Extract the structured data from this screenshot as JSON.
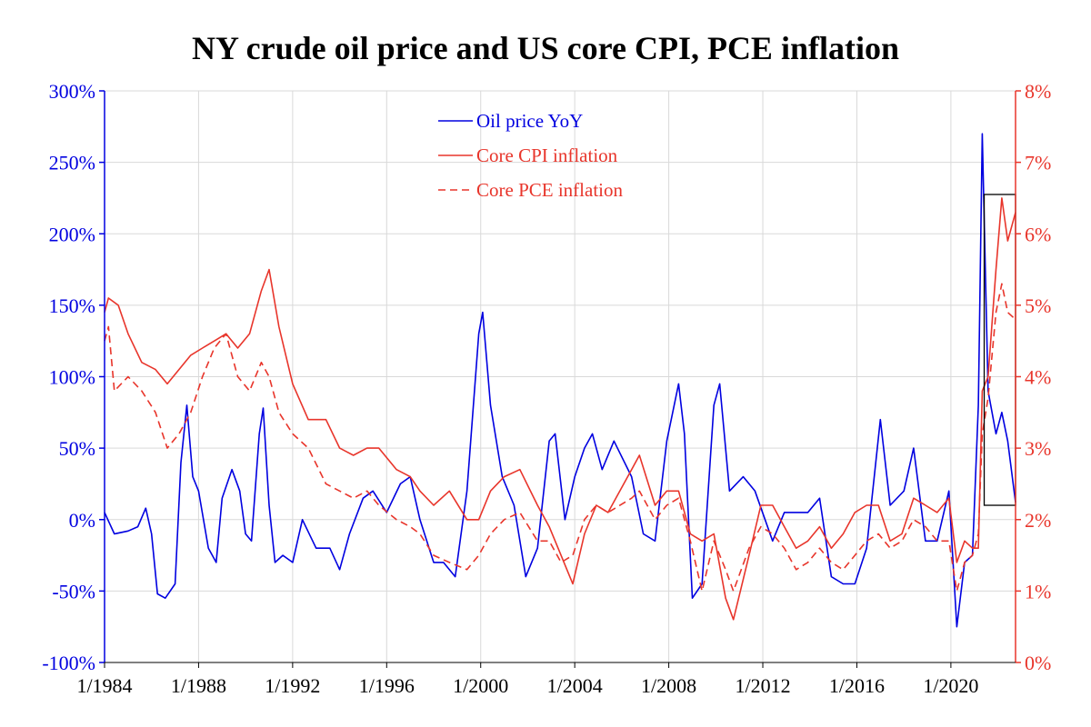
{
  "chart_data": {
    "type": "line",
    "title": "NY crude oil price and US core CPI, PCE inflation",
    "x_axis": {
      "ticks": [
        "1/1984",
        "1/1988",
        "1/1992",
        "1/1996",
        "1/2000",
        "1/2004",
        "1/2008",
        "1/2012",
        "1/2016",
        "1/2020"
      ],
      "range": [
        "1984-01",
        "2022-10"
      ]
    },
    "y_left": {
      "range": [
        -100,
        300
      ],
      "ticks": [
        "300%",
        "250%",
        "200%",
        "150%",
        "100%",
        "50%",
        "0%",
        "-50%",
        "-100%"
      ],
      "color": "#0000e0"
    },
    "y_right": {
      "range": [
        0,
        8
      ],
      "ticks": [
        "8%",
        "7%",
        "6%",
        "5%",
        "4%",
        "3%",
        "2%",
        "1%",
        "0%"
      ],
      "color": "#e8352b"
    },
    "grid": true,
    "legend": {
      "placement": "top-center",
      "entries": [
        "Oil price YoY",
        "Core CPI inflation",
        "Core PCE inflation"
      ]
    },
    "annotation": {
      "type": "box",
      "x_range": [
        "2021-06",
        "2022-10"
      ],
      "y_right_range": [
        2.2,
        6.55
      ]
    },
    "series": [
      {
        "name": "Oil price YoY",
        "axis": "left",
        "color": "#0000e0",
        "style": "solid",
        "points": [
          [
            "1984-01",
            5
          ],
          [
            "1984-06",
            -10
          ],
          [
            "1985-01",
            -8
          ],
          [
            "1985-06",
            -5
          ],
          [
            "1985-10",
            8
          ],
          [
            "1986-01",
            -10
          ],
          [
            "1986-04",
            -52
          ],
          [
            "1986-08",
            -55
          ],
          [
            "1987-01",
            -45
          ],
          [
            "1987-04",
            40
          ],
          [
            "1987-07",
            80
          ],
          [
            "1987-10",
            30
          ],
          [
            "1988-01",
            20
          ],
          [
            "1988-06",
            -20
          ],
          [
            "1988-10",
            -30
          ],
          [
            "1989-01",
            15
          ],
          [
            "1989-06",
            35
          ],
          [
            "1989-10",
            20
          ],
          [
            "1990-01",
            -10
          ],
          [
            "1990-04",
            -15
          ],
          [
            "1990-08",
            60
          ],
          [
            "1990-10",
            78
          ],
          [
            "1991-01",
            10
          ],
          [
            "1991-04",
            -30
          ],
          [
            "1991-08",
            -25
          ],
          [
            "1992-01",
            -30
          ],
          [
            "1992-06",
            0
          ],
          [
            "1993-01",
            -20
          ],
          [
            "1993-08",
            -20
          ],
          [
            "1994-01",
            -35
          ],
          [
            "1994-06",
            -10
          ],
          [
            "1995-01",
            15
          ],
          [
            "1995-06",
            20
          ],
          [
            "1996-01",
            5
          ],
          [
            "1996-08",
            25
          ],
          [
            "1997-01",
            30
          ],
          [
            "1997-06",
            0
          ],
          [
            "1998-01",
            -30
          ],
          [
            "1998-06",
            -30
          ],
          [
            "1998-12",
            -40
          ],
          [
            "1999-06",
            20
          ],
          [
            "1999-12",
            130
          ],
          [
            "2000-02",
            145
          ],
          [
            "2000-06",
            80
          ],
          [
            "2000-12",
            30
          ],
          [
            "2001-06",
            10
          ],
          [
            "2001-12",
            -40
          ],
          [
            "2002-06",
            -20
          ],
          [
            "2002-12",
            55
          ],
          [
            "2003-03",
            60
          ],
          [
            "2003-08",
            0
          ],
          [
            "2004-01",
            30
          ],
          [
            "2004-06",
            50
          ],
          [
            "2004-10",
            60
          ],
          [
            "2005-03",
            35
          ],
          [
            "2005-09",
            55
          ],
          [
            "2006-06",
            30
          ],
          [
            "2006-12",
            -10
          ],
          [
            "2007-06",
            -15
          ],
          [
            "2007-12",
            55
          ],
          [
            "2008-06",
            95
          ],
          [
            "2008-09",
            60
          ],
          [
            "2009-01",
            -55
          ],
          [
            "2009-06",
            -45
          ],
          [
            "2009-12",
            80
          ],
          [
            "2010-03",
            95
          ],
          [
            "2010-08",
            20
          ],
          [
            "2011-03",
            30
          ],
          [
            "2011-09",
            20
          ],
          [
            "2012-06",
            -15
          ],
          [
            "2012-12",
            5
          ],
          [
            "2013-06",
            5
          ],
          [
            "2013-12",
            5
          ],
          [
            "2014-06",
            15
          ],
          [
            "2014-12",
            -40
          ],
          [
            "2015-06",
            -45
          ],
          [
            "2015-12",
            -45
          ],
          [
            "2016-06",
            -20
          ],
          [
            "2017-01",
            70
          ],
          [
            "2017-06",
            10
          ],
          [
            "2018-01",
            20
          ],
          [
            "2018-06",
            50
          ],
          [
            "2018-12",
            -15
          ],
          [
            "2019-06",
            -15
          ],
          [
            "2019-12",
            20
          ],
          [
            "2020-04",
            -75
          ],
          [
            "2020-08",
            -30
          ],
          [
            "2020-12",
            -25
          ],
          [
            "2021-03",
            80
          ],
          [
            "2021-05",
            270
          ],
          [
            "2021-08",
            90
          ],
          [
            "2021-12",
            60
          ],
          [
            "2022-03",
            75
          ],
          [
            "2022-06",
            55
          ],
          [
            "2022-10",
            12
          ]
        ]
      },
      {
        "name": "Core CPI inflation",
        "axis": "right",
        "color": "#e8352b",
        "style": "solid",
        "points": [
          [
            "1984-01",
            4.9
          ],
          [
            "1984-03",
            5.1
          ],
          [
            "1984-08",
            5.0
          ],
          [
            "1985-01",
            4.6
          ],
          [
            "1985-08",
            4.2
          ],
          [
            "1986-03",
            4.1
          ],
          [
            "1986-09",
            3.9
          ],
          [
            "1987-03",
            4.1
          ],
          [
            "1987-09",
            4.3
          ],
          [
            "1988-03",
            4.4
          ],
          [
            "1988-09",
            4.5
          ],
          [
            "1989-03",
            4.6
          ],
          [
            "1989-09",
            4.4
          ],
          [
            "1990-03",
            4.6
          ],
          [
            "1990-09",
            5.2
          ],
          [
            "1991-01",
            5.5
          ],
          [
            "1991-06",
            4.7
          ],
          [
            "1992-01",
            3.9
          ],
          [
            "1992-09",
            3.4
          ],
          [
            "1993-06",
            3.4
          ],
          [
            "1994-01",
            3.0
          ],
          [
            "1994-08",
            2.9
          ],
          [
            "1995-03",
            3.0
          ],
          [
            "1995-09",
            3.0
          ],
          [
            "1996-06",
            2.7
          ],
          [
            "1997-01",
            2.6
          ],
          [
            "1997-06",
            2.4
          ],
          [
            "1998-01",
            2.2
          ],
          [
            "1998-09",
            2.4
          ],
          [
            "1999-06",
            2.0
          ],
          [
            "1999-12",
            2.0
          ],
          [
            "2000-06",
            2.4
          ],
          [
            "2001-01",
            2.6
          ],
          [
            "2001-09",
            2.7
          ],
          [
            "2002-06",
            2.2
          ],
          [
            "2002-12",
            1.9
          ],
          [
            "2003-06",
            1.5
          ],
          [
            "2003-12",
            1.1
          ],
          [
            "2004-06",
            1.8
          ],
          [
            "2004-12",
            2.2
          ],
          [
            "2005-06",
            2.1
          ],
          [
            "2006-06",
            2.7
          ],
          [
            "2006-10",
            2.9
          ],
          [
            "2007-06",
            2.2
          ],
          [
            "2007-12",
            2.4
          ],
          [
            "2008-06",
            2.4
          ],
          [
            "2008-12",
            1.8
          ],
          [
            "2009-06",
            1.7
          ],
          [
            "2009-12",
            1.8
          ],
          [
            "2010-06",
            0.9
          ],
          [
            "2010-10",
            0.6
          ],
          [
            "2011-06",
            1.5
          ],
          [
            "2011-12",
            2.2
          ],
          [
            "2012-06",
            2.2
          ],
          [
            "2012-12",
            1.9
          ],
          [
            "2013-06",
            1.6
          ],
          [
            "2013-12",
            1.7
          ],
          [
            "2014-06",
            1.9
          ],
          [
            "2014-12",
            1.6
          ],
          [
            "2015-06",
            1.8
          ],
          [
            "2015-12",
            2.1
          ],
          [
            "2016-06",
            2.2
          ],
          [
            "2016-12",
            2.2
          ],
          [
            "2017-06",
            1.7
          ],
          [
            "2017-12",
            1.8
          ],
          [
            "2018-06",
            2.3
          ],
          [
            "2018-12",
            2.2
          ],
          [
            "2019-06",
            2.1
          ],
          [
            "2019-12",
            2.3
          ],
          [
            "2020-04",
            1.4
          ],
          [
            "2020-08",
            1.7
          ],
          [
            "2020-12",
            1.6
          ],
          [
            "2021-03",
            1.6
          ],
          [
            "2021-05",
            3.8
          ],
          [
            "2021-08",
            4.0
          ],
          [
            "2021-12",
            5.5
          ],
          [
            "2022-03",
            6.5
          ],
          [
            "2022-06",
            5.9
          ],
          [
            "2022-10",
            6.3
          ]
        ]
      },
      {
        "name": "Core PCE inflation",
        "axis": "right",
        "color": "#e8352b",
        "style": "dashed",
        "points": [
          [
            "1984-01",
            4.5
          ],
          [
            "1984-03",
            4.7
          ],
          [
            "1984-06",
            3.8
          ],
          [
            "1985-01",
            4.0
          ],
          [
            "1985-08",
            3.8
          ],
          [
            "1986-03",
            3.5
          ],
          [
            "1986-09",
            3.0
          ],
          [
            "1987-03",
            3.2
          ],
          [
            "1987-09",
            3.5
          ],
          [
            "1988-03",
            4.0
          ],
          [
            "1988-09",
            4.4
          ],
          [
            "1989-03",
            4.6
          ],
          [
            "1989-09",
            4.0
          ],
          [
            "1990-03",
            3.8
          ],
          [
            "1990-09",
            4.2
          ],
          [
            "1991-01",
            4.0
          ],
          [
            "1991-06",
            3.5
          ],
          [
            "1992-01",
            3.2
          ],
          [
            "1992-09",
            3.0
          ],
          [
            "1993-06",
            2.5
          ],
          [
            "1994-01",
            2.4
          ],
          [
            "1994-08",
            2.3
          ],
          [
            "1995-03",
            2.4
          ],
          [
            "1995-09",
            2.2
          ],
          [
            "1996-06",
            2.0
          ],
          [
            "1997-01",
            1.9
          ],
          [
            "1997-06",
            1.8
          ],
          [
            "1998-01",
            1.5
          ],
          [
            "1998-09",
            1.4
          ],
          [
            "1999-06",
            1.3
          ],
          [
            "1999-12",
            1.5
          ],
          [
            "2000-06",
            1.8
          ],
          [
            "2001-01",
            2.0
          ],
          [
            "2001-09",
            2.1
          ],
          [
            "2002-06",
            1.7
          ],
          [
            "2002-12",
            1.7
          ],
          [
            "2003-06",
            1.4
          ],
          [
            "2003-12",
            1.5
          ],
          [
            "2004-06",
            2.0
          ],
          [
            "2004-12",
            2.2
          ],
          [
            "2005-06",
            2.1
          ],
          [
            "2006-06",
            2.3
          ],
          [
            "2006-10",
            2.4
          ],
          [
            "2007-06",
            2.0
          ],
          [
            "2007-12",
            2.2
          ],
          [
            "2008-06",
            2.3
          ],
          [
            "2008-12",
            1.7
          ],
          [
            "2009-06",
            1.0
          ],
          [
            "2009-12",
            1.7
          ],
          [
            "2010-06",
            1.3
          ],
          [
            "2010-10",
            1.0
          ],
          [
            "2011-06",
            1.6
          ],
          [
            "2011-12",
            1.9
          ],
          [
            "2012-06",
            1.8
          ],
          [
            "2012-12",
            1.6
          ],
          [
            "2013-06",
            1.3
          ],
          [
            "2013-12",
            1.4
          ],
          [
            "2014-06",
            1.6
          ],
          [
            "2014-12",
            1.4
          ],
          [
            "2015-06",
            1.3
          ],
          [
            "2015-12",
            1.5
          ],
          [
            "2016-06",
            1.7
          ],
          [
            "2016-12",
            1.8
          ],
          [
            "2017-06",
            1.6
          ],
          [
            "2017-12",
            1.7
          ],
          [
            "2018-06",
            2.0
          ],
          [
            "2018-12",
            1.9
          ],
          [
            "2019-06",
            1.7
          ],
          [
            "2019-12",
            1.7
          ],
          [
            "2020-04",
            1.0
          ],
          [
            "2020-08",
            1.4
          ],
          [
            "2020-12",
            1.5
          ],
          [
            "2021-03",
            1.8
          ],
          [
            "2021-05",
            3.2
          ],
          [
            "2021-08",
            3.7
          ],
          [
            "2021-12",
            4.9
          ],
          [
            "2022-03",
            5.3
          ],
          [
            "2022-06",
            4.9
          ],
          [
            "2022-10",
            4.8
          ]
        ]
      }
    ]
  }
}
